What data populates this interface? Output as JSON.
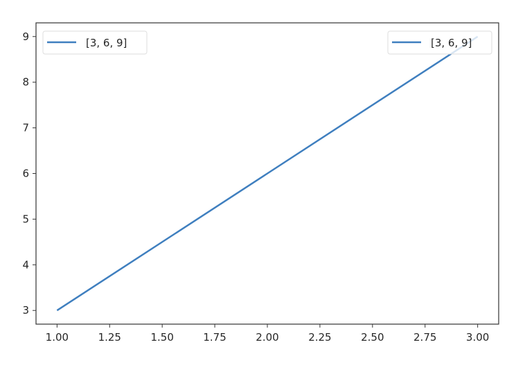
{
  "chart_data": {
    "type": "line",
    "title": "",
    "xlabel": "",
    "ylabel": "",
    "x": [
      1,
      2,
      3
    ],
    "series": [
      {
        "name": "[3, 6, 9]",
        "values": [
          3,
          6,
          9
        ],
        "color": "#3f7fbf"
      }
    ],
    "xlim": [
      0.9,
      3.1
    ],
    "ylim": [
      2.7,
      9.3
    ],
    "xticks": [
      "1.00",
      "1.25",
      "1.50",
      "1.75",
      "2.00",
      "2.25",
      "2.50",
      "2.75",
      "3.00"
    ],
    "yticks": [
      "3",
      "4",
      "5",
      "6",
      "7",
      "8",
      "9"
    ],
    "grid": false,
    "legends": [
      {
        "placement": "upper-left",
        "label": "[3, 6, 9]"
      },
      {
        "placement": "upper-right",
        "label": "[3, 6, 9]"
      }
    ]
  }
}
